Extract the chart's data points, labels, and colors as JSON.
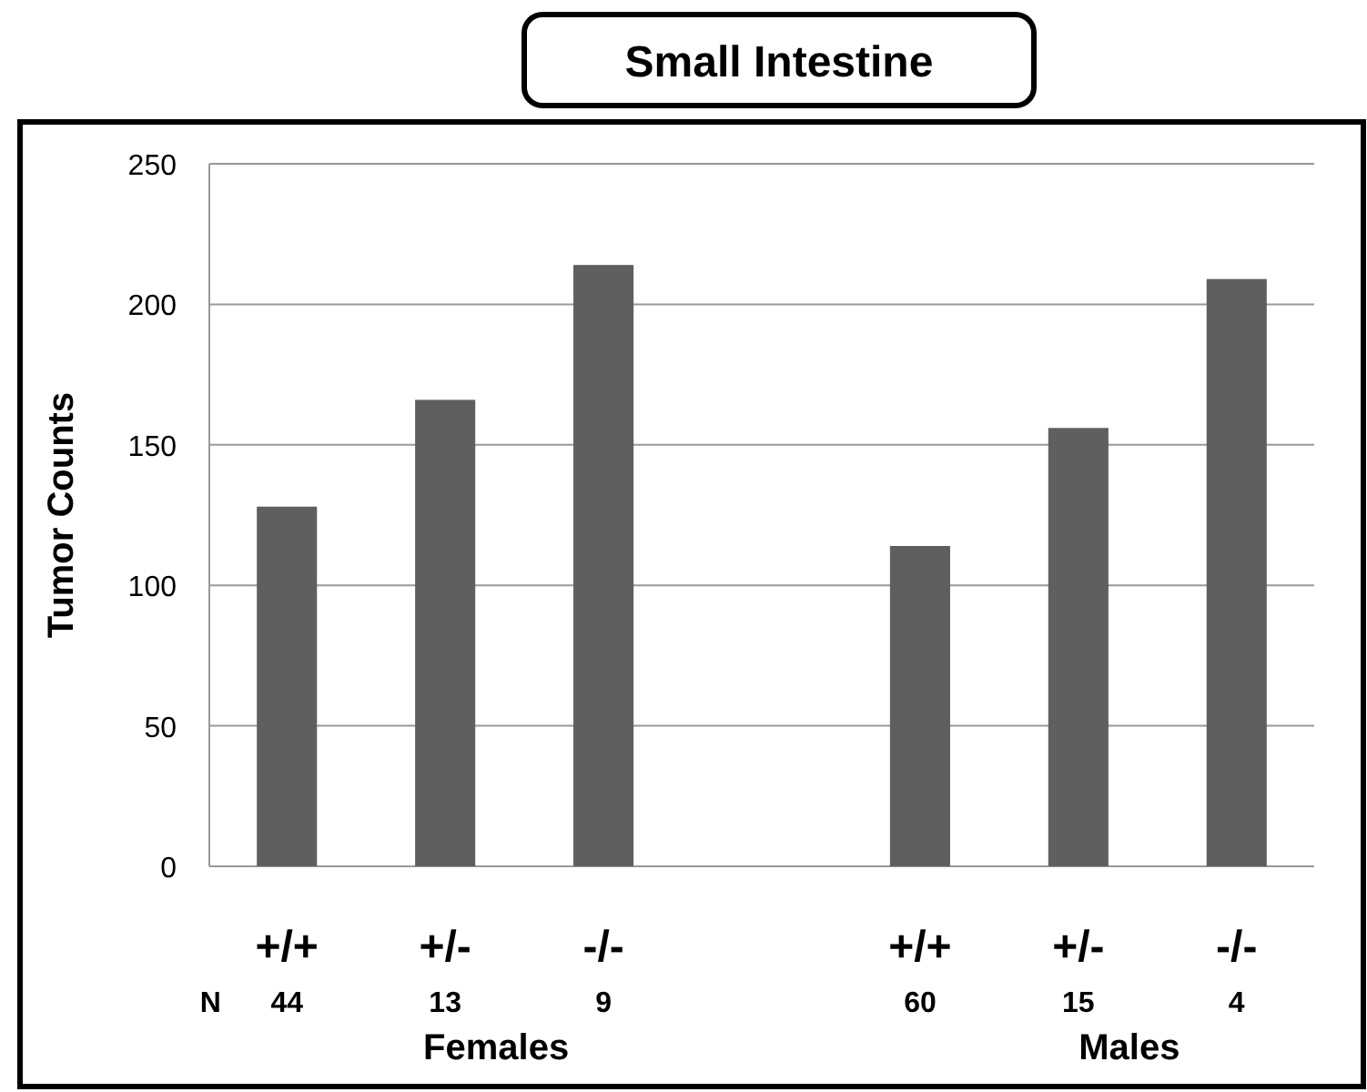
{
  "chart_data": {
    "type": "bar",
    "title": "Small Intestine",
    "ylabel": "Tumor Counts",
    "categories": [
      "+/+",
      "+/-",
      "-/-",
      null,
      "+/+",
      "+/-",
      "-/-"
    ],
    "values": [
      128,
      166,
      214,
      null,
      114,
      156,
      209
    ],
    "color": "#5f5f5f",
    "ylim": [
      0,
      250
    ],
    "yticks": [
      0,
      50,
      100,
      150,
      200,
      250
    ],
    "grid": "y",
    "annotations": [
      "N",
      "44",
      "13",
      "9",
      "60",
      "15",
      "4",
      "Females",
      "Males"
    ]
  }
}
